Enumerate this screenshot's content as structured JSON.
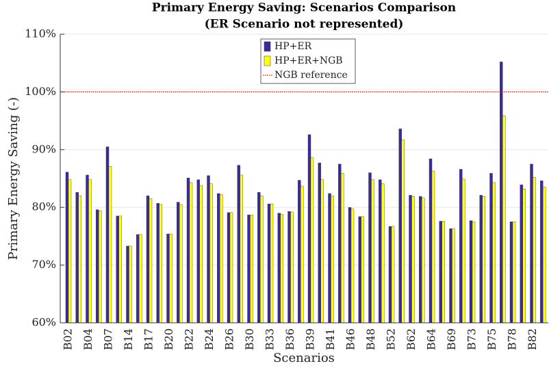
{
  "chart_data": {
    "type": "bar",
    "title": [
      "Primary Energy Saving: Scenarios Comparison",
      "(ER Scenario not represented)"
    ],
    "x_label": "Scenarios",
    "y_label": "Primary Energy Saving (-)",
    "categories": [
      "B02",
      null,
      "B04",
      null,
      "B07",
      null,
      "B14",
      null,
      "B17",
      null,
      "B20",
      null,
      "B22",
      null,
      "B24",
      null,
      "B26",
      null,
      "B30",
      null,
      "B33",
      null,
      "B36",
      null,
      "B39",
      null,
      "B41",
      null,
      "B46",
      null,
      "B48",
      null,
      "B52",
      null,
      "B62",
      null,
      "B64",
      null,
      "B69",
      null,
      "B73",
      null,
      "B75",
      null,
      "B78",
      null,
      "B82",
      null
    ],
    "series": [
      {
        "name": "HP+ER",
        "color": "#3a2a9e",
        "values": [
          86.1,
          82.6,
          85.6,
          79.6,
          90.5,
          78.5,
          73.3,
          75.3,
          82.0,
          80.7,
          75.4,
          80.9,
          85.1,
          84.8,
          85.5,
          82.4,
          79.1,
          87.3,
          78.7,
          82.6,
          80.6,
          79.0,
          79.3,
          84.7,
          92.6,
          87.7,
          82.4,
          87.5,
          80.0,
          78.4,
          86.0,
          84.8,
          76.7,
          93.6,
          82.1,
          81.9,
          88.4,
          77.6,
          76.3,
          86.6,
          77.7,
          82.1,
          85.9,
          105.2,
          77.5,
          83.9,
          87.5,
          84.6
        ]
      },
      {
        "name": "HP+ER+NGB",
        "color": "#ffff1a",
        "values": [
          84.8,
          82.0,
          84.8,
          79.4,
          87.1,
          78.5,
          73.3,
          75.3,
          81.5,
          80.5,
          75.4,
          80.5,
          84.3,
          83.8,
          84.1,
          82.2,
          79.1,
          85.6,
          78.7,
          82.0,
          80.6,
          78.8,
          79.2,
          83.7,
          88.6,
          84.8,
          82.0,
          85.9,
          79.7,
          78.4,
          84.8,
          84.1,
          76.7,
          91.7,
          81.9,
          81.6,
          86.3,
          77.6,
          76.3,
          84.9,
          77.5,
          81.9,
          84.3,
          95.9,
          77.5,
          83.2,
          85.2,
          83.5
        ]
      }
    ],
    "reference": {
      "name": "NGB reference",
      "value": 100,
      "color": "#ff0000"
    },
    "ylim": [
      60,
      110
    ],
    "yticks": [
      {
        "value": 60,
        "label": "60%"
      },
      {
        "value": 70,
        "label": "70%"
      },
      {
        "value": 80,
        "label": "80%"
      },
      {
        "value": 90,
        "label": "90%"
      },
      {
        "value": 100,
        "label": "100%"
      },
      {
        "value": 110,
        "label": "110%"
      }
    ],
    "grid": true,
    "legend": "top"
  }
}
